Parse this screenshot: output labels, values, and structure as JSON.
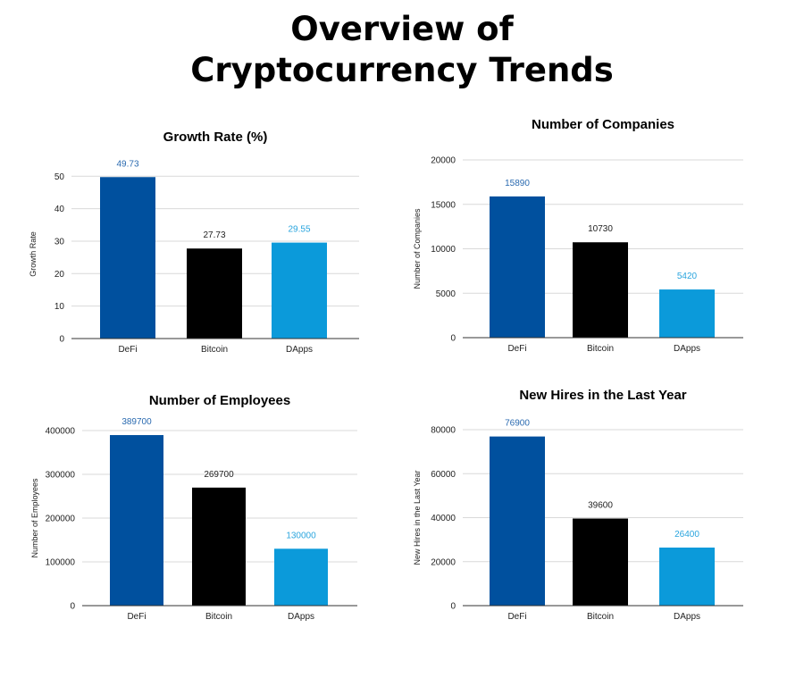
{
  "page": {
    "title_line1": "Overview of",
    "title_line2": "Cryptocurrency Trends"
  },
  "chart_data": [
    {
      "type": "bar",
      "title": "Growth Rate (%)",
      "xlabel": "",
      "ylabel": "Growth Rate",
      "categories": [
        "DeFi",
        "Bitcoin",
        "DApps"
      ],
      "values": [
        49.73,
        27.73,
        29.55
      ],
      "value_labels": [
        "49.73",
        "27.73",
        "29.55"
      ],
      "yticks": [
        0,
        10,
        20,
        30,
        40,
        50
      ],
      "ytick_labels": [
        "0",
        "10",
        "20",
        "30",
        "40",
        "50"
      ],
      "ylim": [
        0,
        52
      ],
      "grid": true,
      "legend": "none",
      "bar_colors": [
        "#00509e",
        "#000000",
        "#0b9ada"
      ],
      "label_colors": [
        "#2a6ab0",
        "#222222",
        "#2aa5de"
      ]
    },
    {
      "type": "bar",
      "title": "Number of Companies",
      "xlabel": "",
      "ylabel": "Number of Companies",
      "categories": [
        "DeFi",
        "Bitcoin",
        "DApps"
      ],
      "values": [
        15890,
        10730,
        5420
      ],
      "value_labels": [
        "15890",
        "10730",
        "5420"
      ],
      "yticks": [
        0,
        5000,
        10000,
        15000,
        20000
      ],
      "ytick_labels": [
        "0",
        "5000",
        "10000",
        "15000",
        "20000"
      ],
      "ylim": [
        0,
        20000
      ],
      "grid": true,
      "legend": "none",
      "bar_colors": [
        "#00509e",
        "#000000",
        "#0b9ada"
      ],
      "label_colors": [
        "#2a6ab0",
        "#222222",
        "#2aa5de"
      ]
    },
    {
      "type": "bar",
      "title": "Number of Employees",
      "xlabel": "",
      "ylabel": "Number of Employees",
      "categories": [
        "DeFi",
        "Bitcoin",
        "DApps"
      ],
      "values": [
        389700,
        269700,
        130000
      ],
      "value_labels": [
        "389700",
        "269700",
        "130000"
      ],
      "yticks": [
        0,
        100000,
        200000,
        300000,
        400000
      ],
      "ytick_labels": [
        "0",
        "100000",
        "200000",
        "300000",
        "400000"
      ],
      "ylim": [
        0,
        400000
      ],
      "grid": true,
      "legend": "none",
      "bar_colors": [
        "#00509e",
        "#000000",
        "#0b9ada"
      ],
      "label_colors": [
        "#2a6ab0",
        "#222222",
        "#2aa5de"
      ]
    },
    {
      "type": "bar",
      "title": "New Hires in the Last Year",
      "xlabel": "",
      "ylabel": "New Hires in the Last Year",
      "categories": [
        "DeFi",
        "Bitcoin",
        "DApps"
      ],
      "values": [
        76900,
        39600,
        26400
      ],
      "value_labels": [
        "76900",
        "39600",
        "26400"
      ],
      "yticks": [
        0,
        20000,
        40000,
        60000,
        80000
      ],
      "ytick_labels": [
        "0",
        "20000",
        "40000",
        "60000",
        "80000"
      ],
      "ylim": [
        0,
        80000
      ],
      "grid": true,
      "legend": "none",
      "bar_colors": [
        "#00509e",
        "#000000",
        "#0b9ada"
      ],
      "label_colors": [
        "#2a6ab0",
        "#222222",
        "#2aa5de"
      ]
    }
  ]
}
